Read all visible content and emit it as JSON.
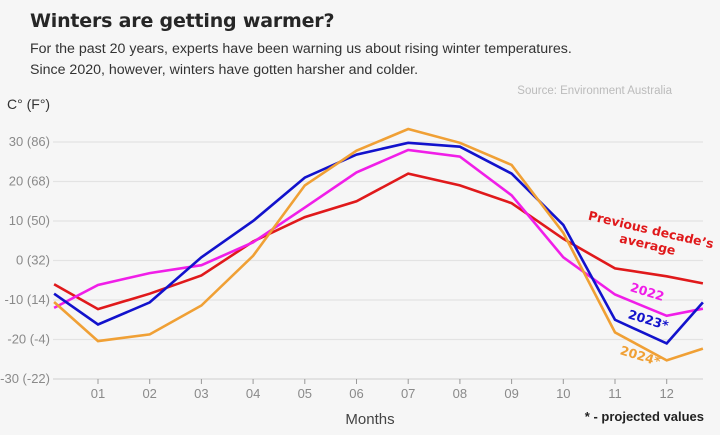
{
  "header": {
    "title": "Winters are getting warmer?",
    "subtitle_lines": [
      "For the past 20 years, experts have been warning us about rising winter temperatures.",
      "Since 2020, however, winters have gotten harsher and colder."
    ],
    "source": "Source: Environment Australia",
    "unit_label": "C° (F°)",
    "footnote": "* - projected values"
  },
  "chart_data": {
    "type": "line",
    "title": "Winters are getting warmer?",
    "xlabel": "Months",
    "ylabel": "C° (F°)",
    "x": [
      0.15,
      1,
      2,
      3,
      4,
      5,
      6,
      7,
      8,
      9,
      10,
      11,
      12,
      12.7
    ],
    "x_ticks": [
      1,
      2,
      3,
      4,
      5,
      6,
      7,
      8,
      9,
      10,
      11,
      12
    ],
    "x_tick_labels": [
      "01",
      "02",
      "03",
      "04",
      "05",
      "06",
      "07",
      "08",
      "09",
      "10",
      "11",
      "12"
    ],
    "xlim": [
      0.15,
      12.7
    ],
    "ylim": [
      -30,
      30
    ],
    "y_ticks": [
      30,
      20,
      10,
      0,
      -10,
      -20,
      -30
    ],
    "y_tick_labels": [
      "30 (86)",
      "20 (68)",
      "10 (50)",
      "0 (32)",
      "-10 (14)",
      "-20 (-4)",
      "-30 (-22)"
    ],
    "grid": "horizontal",
    "series": [
      {
        "name": "Previous decade's average",
        "color": "#e0191b",
        "values": [
          -6,
          -12.3,
          -8.4,
          -3.8,
          4.8,
          11,
          15,
          22,
          19,
          14.5,
          5.5,
          -2,
          -4,
          -5.8
        ]
      },
      {
        "name": "2022",
        "color": "#f01ee8",
        "values": [
          -12,
          -6.2,
          -3.2,
          -1.2,
          4.6,
          13.4,
          22.3,
          28,
          26.3,
          16.5,
          0.8,
          -8.6,
          -14,
          -12.2
        ]
      },
      {
        "name": "2023*",
        "color": "#1212cc",
        "values": [
          -8.4,
          -16.2,
          -10.6,
          0.8,
          10,
          21,
          26.8,
          29.8,
          28.8,
          22,
          9,
          -15,
          -21,
          -10.6
        ]
      },
      {
        "name": "2024*",
        "color": "#f0a035",
        "values": [
          -10.5,
          -20.4,
          -18.7,
          -11.4,
          1.2,
          19,
          27.8,
          33.3,
          29.8,
          24.2,
          7,
          -18.2,
          -25.3,
          -22.3
        ]
      }
    ],
    "annotations": [
      {
        "series": "Previous decade's average",
        "lines": [
          "Previous decade’s",
          "average"
        ]
      },
      {
        "series": "2022",
        "lines": [
          "2022"
        ]
      },
      {
        "series": "2023*",
        "lines": [
          "2023*"
        ]
      },
      {
        "series": "2024*",
        "lines": [
          "2024*"
        ]
      }
    ]
  }
}
